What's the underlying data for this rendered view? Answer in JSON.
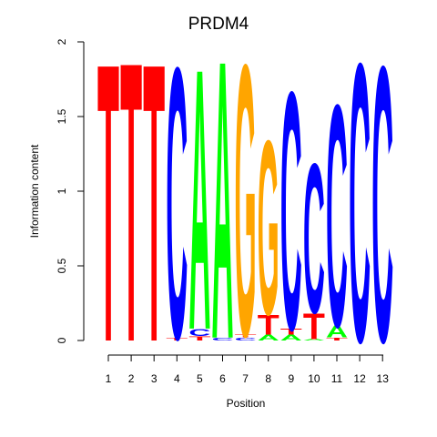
{
  "chart_data": {
    "type": "sequence-logo",
    "title": "PRDM4",
    "xlabel": "Position",
    "ylabel": "Information content",
    "ylim": [
      0,
      2
    ],
    "yticks": [
      "0",
      "0.5",
      "1",
      "1.5",
      "2"
    ],
    "ytick_values": [
      0,
      0.5,
      1,
      1.5,
      2
    ],
    "positions": [
      "1",
      "2",
      "3",
      "4",
      "5",
      "6",
      "7",
      "8",
      "9",
      "10",
      "11",
      "12",
      "13"
    ],
    "colors": {
      "A": "#00ff00",
      "C": "#0000ff",
      "G": "#ffa500",
      "T": "#ff0000"
    },
    "stacks": [
      [
        {
          "letter": "T",
          "height": 1.92
        }
      ],
      [
        {
          "letter": "T",
          "height": 1.93
        }
      ],
      [
        {
          "letter": "T",
          "height": 1.92
        }
      ],
      [
        {
          "letter": "T",
          "height": 0.02
        },
        {
          "letter": "C",
          "height": 1.87
        }
      ],
      [
        {
          "letter": "T",
          "height": 0.03
        },
        {
          "letter": "C",
          "height": 0.05
        },
        {
          "letter": "A",
          "height": 1.8
        }
      ],
      [
        {
          "letter": "C",
          "height": 0.02
        },
        {
          "letter": "A",
          "height": 1.92
        }
      ],
      [
        {
          "letter": "C",
          "height": 0.02
        },
        {
          "letter": "T",
          "height": 0.02
        },
        {
          "letter": "G",
          "height": 1.87
        }
      ],
      [
        {
          "letter": "A",
          "height": 0.04
        },
        {
          "letter": "T",
          "height": 0.14
        },
        {
          "letter": "G",
          "height": 1.2
        }
      ],
      [
        {
          "letter": "A",
          "height": 0.04
        },
        {
          "letter": "T",
          "height": 0.04
        },
        {
          "letter": "C",
          "height": 1.64
        }
      ],
      [
        {
          "letter": "A",
          "height": 0.01
        },
        {
          "letter": "T",
          "height": 0.18
        },
        {
          "letter": "C",
          "height": 1.03
        }
      ],
      [
        {
          "letter": "T",
          "height": 0.02
        },
        {
          "letter": "A",
          "height": 0.08
        },
        {
          "letter": "C",
          "height": 1.53
        }
      ],
      [
        {
          "letter": "C",
          "height": 1.92
        }
      ],
      [
        {
          "letter": "C",
          "height": 1.9
        }
      ]
    ]
  }
}
